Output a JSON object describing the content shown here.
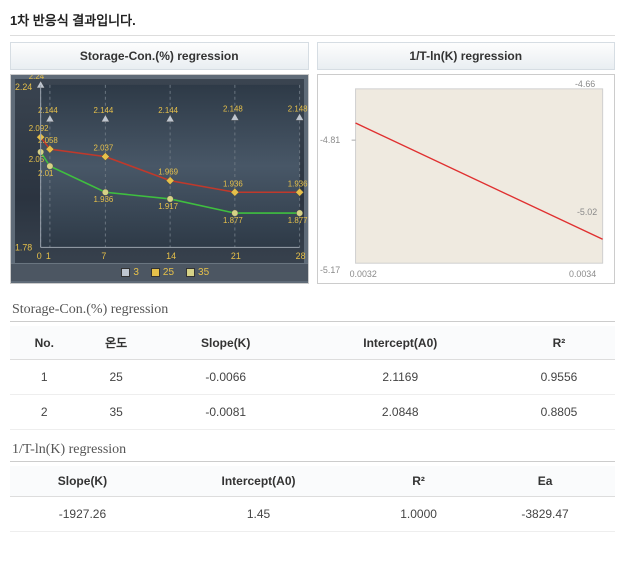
{
  "page_title": "1차 반응식 결과입니다.",
  "chart_headers": {
    "left": "Storage-Con.(%) regression",
    "right": "1/T-ln(K) regression"
  },
  "chart1": {
    "type": "line",
    "background_color": "#3a4450",
    "frame_color": "#5f6b78",
    "grid_color": "#6a7580",
    "axis_label_color": "#e6c04a",
    "value_label_color": "#e6c04a",
    "x_values": [
      0,
      1,
      7,
      14,
      21,
      28
    ],
    "x_tick_labels": [
      "0",
      "1",
      "7",
      "14",
      "21",
      "28"
    ],
    "ylim": [
      1.78,
      2.24
    ],
    "y_tick_labels_top": "2.24",
    "y_tick_labels_bottom": "1.78",
    "series": [
      {
        "name": "3",
        "marker_color": "#bfc6cf",
        "line_color": "#bfc6cf",
        "marker": "triangle",
        "values": [
          2.24,
          2.144,
          2.144,
          2.144,
          2.148,
          2.148
        ],
        "line_visible": false,
        "dashed_drop": true
      },
      {
        "name": "25",
        "marker_color": "#e6c04a",
        "line_color": "#c0392b",
        "marker": "diamond",
        "values": [
          2.092,
          2.058,
          2.037,
          1.969,
          1.936,
          1.936
        ]
      },
      {
        "name": "35",
        "marker_color": "#d6d287",
        "line_color": "#3fbf3f",
        "marker": "circle",
        "values": [
          2.05,
          2.01,
          1.936,
          1.917,
          1.877,
          1.877
        ]
      }
    ],
    "legend_items": [
      {
        "label": "3",
        "color": "#bfc6cf"
      },
      {
        "label": "25",
        "color": "#e6c04a"
      },
      {
        "label": "35",
        "color": "#d6d287"
      }
    ]
  },
  "chart2": {
    "type": "line",
    "plot_bg": "#efeae0",
    "outer_bg": "#ffffff",
    "border_color": "#cfcfcf",
    "line_color": "#e03030",
    "axis_text_color": "#8a8a8a",
    "xlim": [
      0.0032,
      0.0034
    ],
    "ylim": [
      -5.17,
      -4.66
    ],
    "ytick_left_top": "-4.66",
    "ytick_left_mid": "-4.81",
    "ytick_right_mid": "-5.02",
    "ytick_left_bottom": "-5.17",
    "xtick_left": "0.0032",
    "xtick_right": "0.0034",
    "points": [
      {
        "x": 0.0032,
        "y": -4.76
      },
      {
        "x": 0.0034,
        "y": -5.1
      }
    ]
  },
  "table1": {
    "title": "Storage-Con.(%) regression",
    "headers": [
      "No.",
      "온도",
      "Slope(K)",
      "Intercept(A0)",
      "R²"
    ],
    "rows": [
      [
        "1",
        "25",
        "-0.0066",
        "2.1169",
        "0.9556"
      ],
      [
        "2",
        "35",
        "-0.0081",
        "2.0848",
        "0.8805"
      ]
    ]
  },
  "table2": {
    "title": "1/T-ln(K) regression",
    "headers": [
      "Slope(K)",
      "Intercept(A0)",
      "R²",
      "Ea"
    ],
    "rows": [
      [
        "-1927.26",
        "1.45",
        "1.0000",
        "-3829.47"
      ]
    ]
  }
}
